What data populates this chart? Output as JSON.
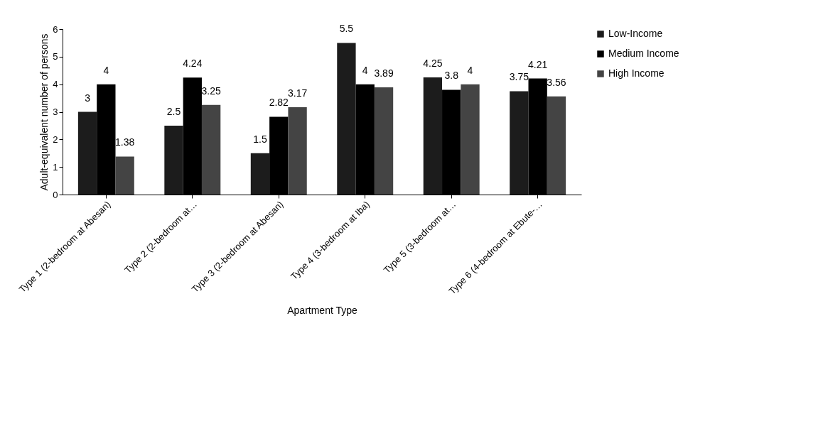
{
  "chart_data": {
    "type": "bar",
    "xlabel": "Apartment Type",
    "ylabel": "Adult-equivalent number of persons",
    "categories": [
      "Type 1 (2-bedroom at Abesan)",
      "Type 2 (2-bedroom at…",
      "Type 3 (2-bedroom at Abesan)",
      "Type 4 (3-bedroom at Iba)",
      "Type 5 (3-bedroom at…",
      "Type 6 (4-bedroom at Ebute-…"
    ],
    "series": [
      {
        "name": "Low-Income",
        "color": "#1c1c1c",
        "values": [
          3,
          2.5,
          1.5,
          5.5,
          4.25,
          3.75
        ]
      },
      {
        "name": "Medium Income",
        "color": "#000000",
        "values": [
          4,
          4.24,
          2.82,
          4,
          3.8,
          4.21
        ]
      },
      {
        "name": "High Income",
        "color": "#444444",
        "values": [
          1.38,
          3.25,
          3.17,
          3.89,
          4,
          3.56
        ]
      }
    ],
    "ylim": [
      0,
      6
    ],
    "yticks": [
      0,
      1,
      2,
      3,
      4,
      5,
      6
    ],
    "grid": false,
    "legend": "right",
    "data_labels": true
  }
}
